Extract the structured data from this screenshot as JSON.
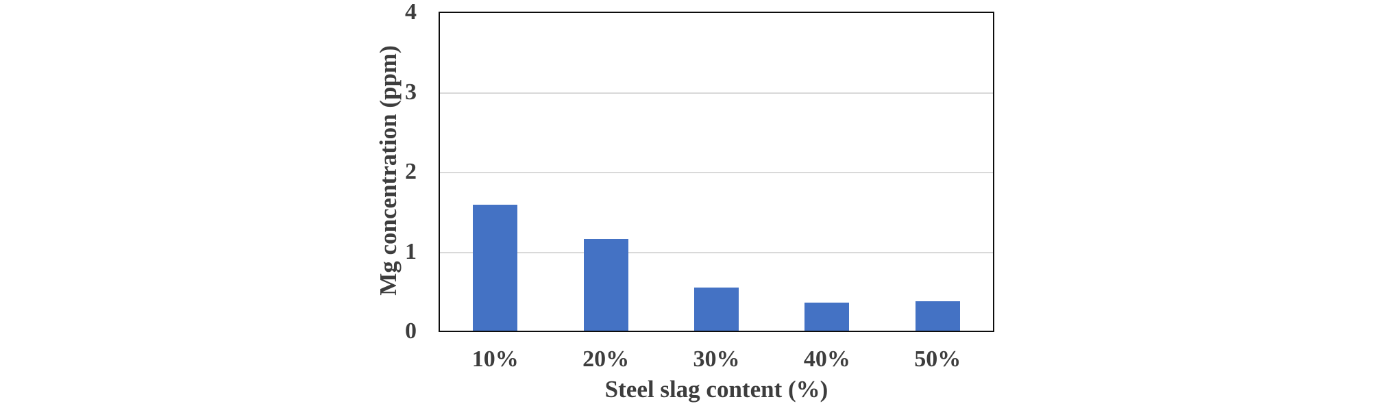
{
  "chart_data": {
    "type": "bar",
    "title": "",
    "categories": [
      "10%",
      "20%",
      "30%",
      "40%",
      "50%"
    ],
    "values": [
      1.58,
      1.15,
      0.54,
      0.35,
      0.37
    ],
    "xlabel": "Steel slag content (%)",
    "ylabel": "Mg concentration (ppm)",
    "ylim": [
      0,
      4
    ],
    "yticks": [
      0,
      1,
      2,
      3,
      4
    ],
    "gridlines_at": [
      1,
      2,
      3
    ],
    "legend": "none",
    "grid": "horizontal-light",
    "colors": {
      "bar_fill": "#4472C4",
      "gridline": "#D9D9D9",
      "plot_border": "#0d0d0d",
      "text": "#3d3d3d",
      "background": "#ffffff"
    }
  }
}
